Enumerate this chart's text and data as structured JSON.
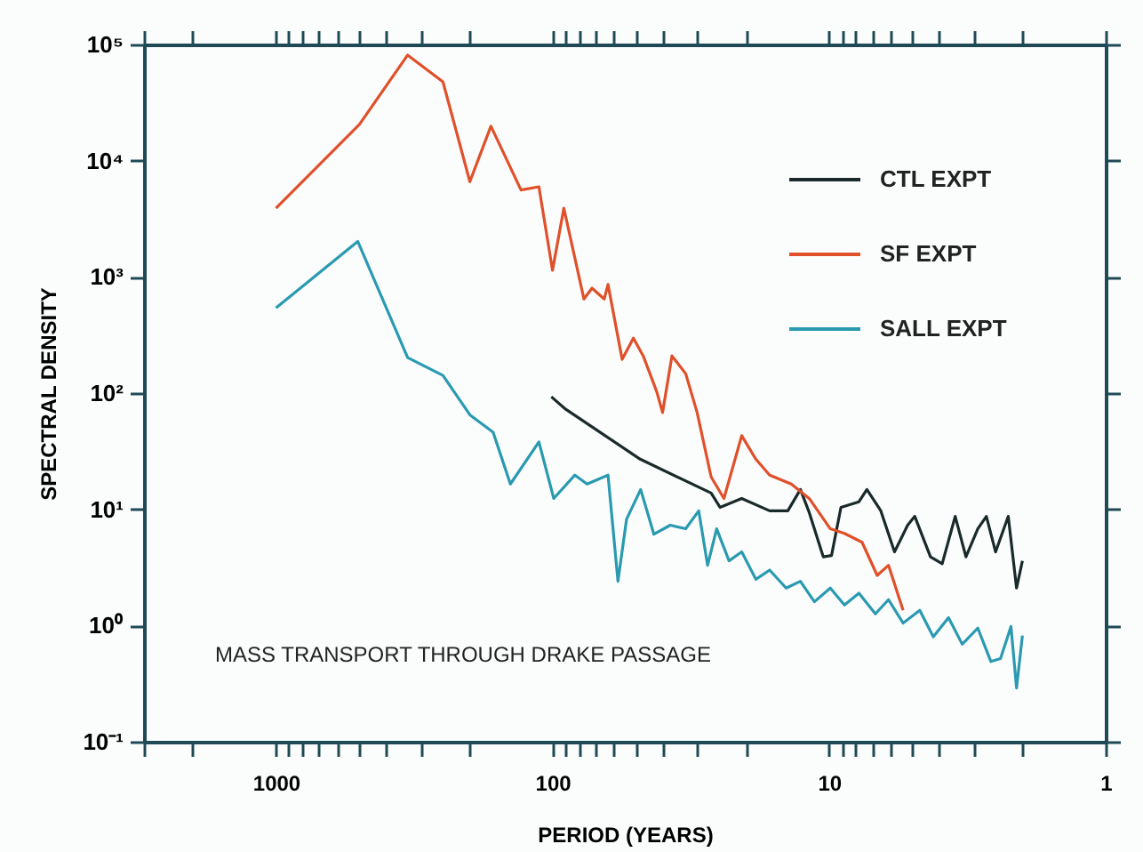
{
  "chart_data": {
    "type": "line",
    "xlabel": "PERIOD (YEARS)",
    "ylabel": "SPECTRAL DENSITY",
    "log": "xy",
    "grid": false,
    "legend": "top right",
    "marker": "none",
    "line_style": "solid",
    "annotations": [
      "MASS TRANSPORT THROUGH DRAKE PASSAGE"
    ],
    "xlim": [
      3000,
      1
    ],
    "ylim": [
      0.1,
      100000
    ],
    "xticks": [
      {
        "value": 3000,
        "label": null
      },
      {
        "value": 2000,
        "label": null
      },
      1000,
      {
        "value": 900,
        "label": null
      },
      {
        "value": 800,
        "label": null
      },
      {
        "value": 700,
        "label": null
      },
      {
        "value": 600,
        "label": null
      },
      {
        "value": 500,
        "label": null
      },
      {
        "value": 400,
        "label": null
      },
      {
        "value": 300,
        "label": null
      },
      {
        "value": 200,
        "label": null
      },
      100,
      {
        "value": 90,
        "label": null
      },
      {
        "value": 80,
        "label": null
      },
      {
        "value": 70,
        "label": null
      },
      {
        "value": 60,
        "label": null
      },
      {
        "value": 50,
        "label": null
      },
      {
        "value": 40,
        "label": null
      },
      {
        "value": 30,
        "label": null
      },
      {
        "value": 20,
        "label": null
      },
      10,
      {
        "value": 9,
        "label": null
      },
      {
        "value": 8,
        "label": null
      },
      {
        "value": 7,
        "label": null
      },
      {
        "value": 6,
        "label": null
      },
      {
        "value": 5,
        "label": null
      },
      {
        "value": 4,
        "label": null
      },
      {
        "value": 3,
        "label": null
      },
      {
        "value": 2,
        "label": null
      },
      1
    ],
    "yticks": [
      {
        "value": 0.1,
        "label": "10⁻¹"
      },
      {
        "value": 1,
        "label": "10⁰"
      },
      {
        "value": 10,
        "label": "10¹"
      },
      {
        "value": 100,
        "label": "10²"
      },
      {
        "value": 1000,
        "label": "10³"
      },
      {
        "value": 10000,
        "label": "10⁴"
      },
      {
        "value": 100000,
        "label": "10⁵"
      }
    ],
    "series": [
      {
        "name": "CTL EXPT",
        "color": "#1a2a2a",
        "x": [
          101,
          89.6,
          48.2,
          26.7,
          24.8,
          20.7,
          16.4,
          14.1,
          12.7,
          11.8,
          10.5,
          9.8,
          9.06,
          7.8,
          7.3,
          6.5,
          5.8,
          5.2,
          4.9,
          4.3,
          3.9,
          3.5,
          3.2,
          2.9,
          2.7,
          2.5,
          2.25,
          2.1,
          2.0
        ],
        "values": [
          93,
          72.6,
          27,
          13.8,
          10.4,
          12.4,
          9.7,
          9.7,
          14.8,
          9.4,
          3.9,
          4.0,
          10.4,
          11.6,
          14.8,
          9.7,
          4.3,
          7.3,
          8.7,
          3.9,
          3.4,
          8.7,
          3.9,
          6.8,
          8.7,
          4.3,
          8.7,
          2.1,
          3.6
        ]
      },
      {
        "name": "SF EXPT",
        "color": "#e0502a",
        "x": [
          1000,
          499,
          334,
          249,
          199,
          167,
          130,
          112,
          100,
          91,
          77,
          72,
          65,
          63,
          56,
          51,
          47,
          42,
          40,
          37,
          33,
          30,
          26.7,
          24,
          20.7,
          18.4,
          16.4,
          13.7,
          11.8,
          9.9,
          8.8,
          7.6,
          6.7,
          6.1,
          5.4
        ],
        "values": [
          3900,
          20500,
          81000,
          47700,
          6600,
          19800,
          5600,
          5960,
          1140,
          3900,
          645,
          800,
          645,
          860,
          195,
          297,
          209,
          103,
          68,
          209,
          147,
          68,
          19,
          12.4,
          43,
          27,
          19.7,
          16.5,
          12.4,
          6.8,
          6.2,
          5.2,
          2.7,
          3.3,
          1.35
        ]
      },
      {
        "name": "SALL EXPT",
        "color": "#2a9ab0",
        "x": [
          1000,
          506,
          334,
          249,
          199,
          164,
          142,
          112,
          99,
          83,
          75,
          63,
          58,
          54,
          48,
          43,
          37.5,
          33,
          29.6,
          27.5,
          25.5,
          23,
          20.7,
          18.4,
          16.4,
          14.3,
          12.7,
          11.3,
          9.9,
          8.8,
          7.8,
          6.8,
          6.1,
          5.4,
          4.7,
          4.2,
          3.7,
          3.3,
          2.9,
          2.6,
          2.4,
          2.2,
          2.1,
          2.0
        ],
        "values": [
          541,
          2020,
          202,
          142,
          65,
          46,
          16.5,
          38,
          12.4,
          19.7,
          16.5,
          19.7,
          2.4,
          8.2,
          14.8,
          6.1,
          7.3,
          6.8,
          9.7,
          3.3,
          6.8,
          3.6,
          4.3,
          2.5,
          3.0,
          2.1,
          2.4,
          1.6,
          2.1,
          1.5,
          1.9,
          1.26,
          1.67,
          1.05,
          1.35,
          0.8,
          1.17,
          0.69,
          0.95,
          0.49,
          0.52,
          0.98,
          0.29,
          0.82
        ]
      }
    ]
  }
}
